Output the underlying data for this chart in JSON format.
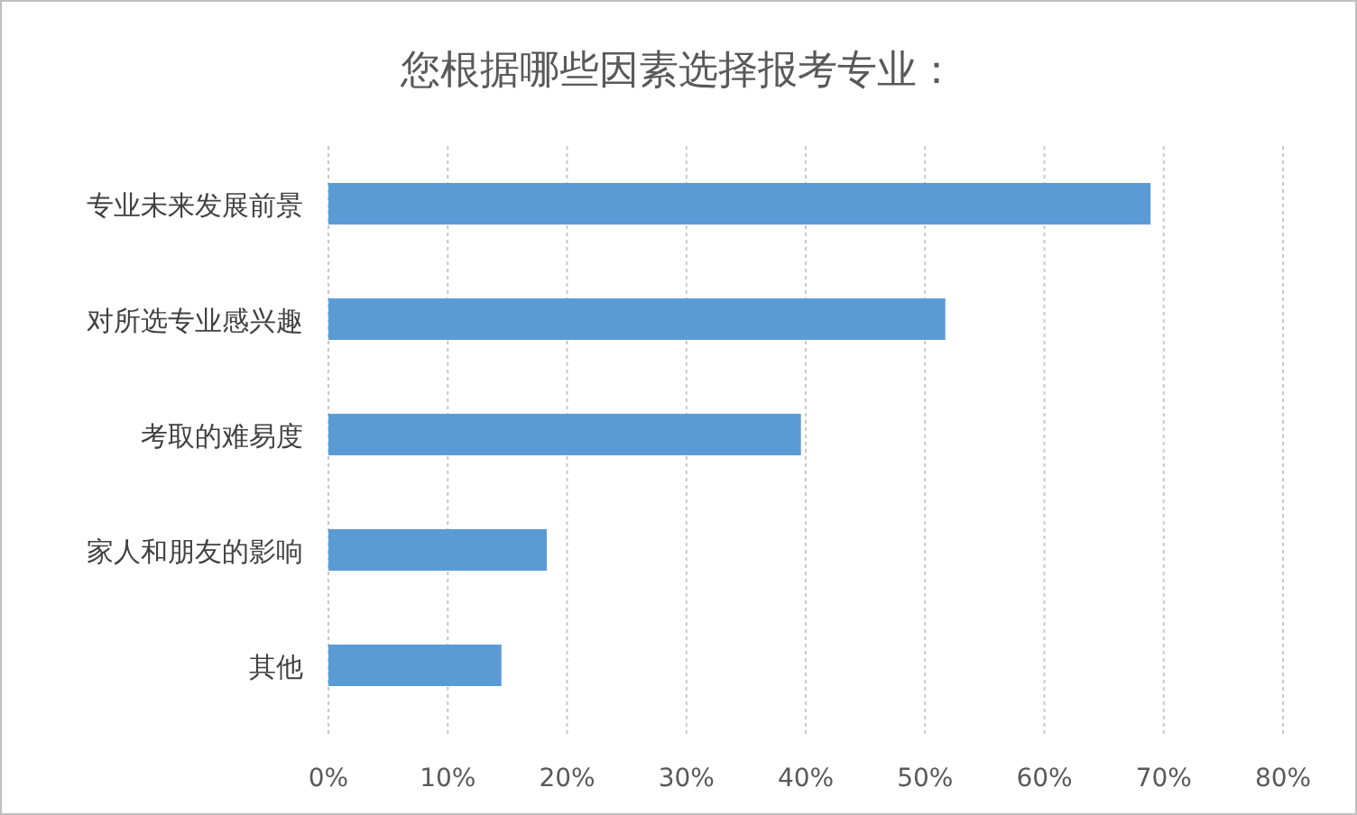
{
  "chart_data": {
    "type": "bar",
    "orientation": "horizontal",
    "title": "您根据哪些因素选择报考专业：",
    "categories": [
      "专业未来发展前景",
      "对所选专业感兴趣",
      "考取的难易度",
      "家人和朋友的影响",
      "其他"
    ],
    "values": [
      68.9,
      51.7,
      39.6,
      18.3,
      14.5
    ],
    "color": "#5b9bd5",
    "xlim": [
      0,
      80
    ],
    "xticks": [
      {
        "value": 0,
        "label": "0%"
      },
      {
        "value": 10,
        "label": "10%"
      },
      {
        "value": 20,
        "label": "20%"
      },
      {
        "value": 30,
        "label": "30%"
      },
      {
        "value": 40,
        "label": "40%"
      },
      {
        "value": 50,
        "label": "50%"
      },
      {
        "value": 60,
        "label": "60%"
      },
      {
        "value": 70,
        "label": "70%"
      },
      {
        "value": 80,
        "label": "80%"
      }
    ],
    "grid": "x",
    "legend": false
  }
}
